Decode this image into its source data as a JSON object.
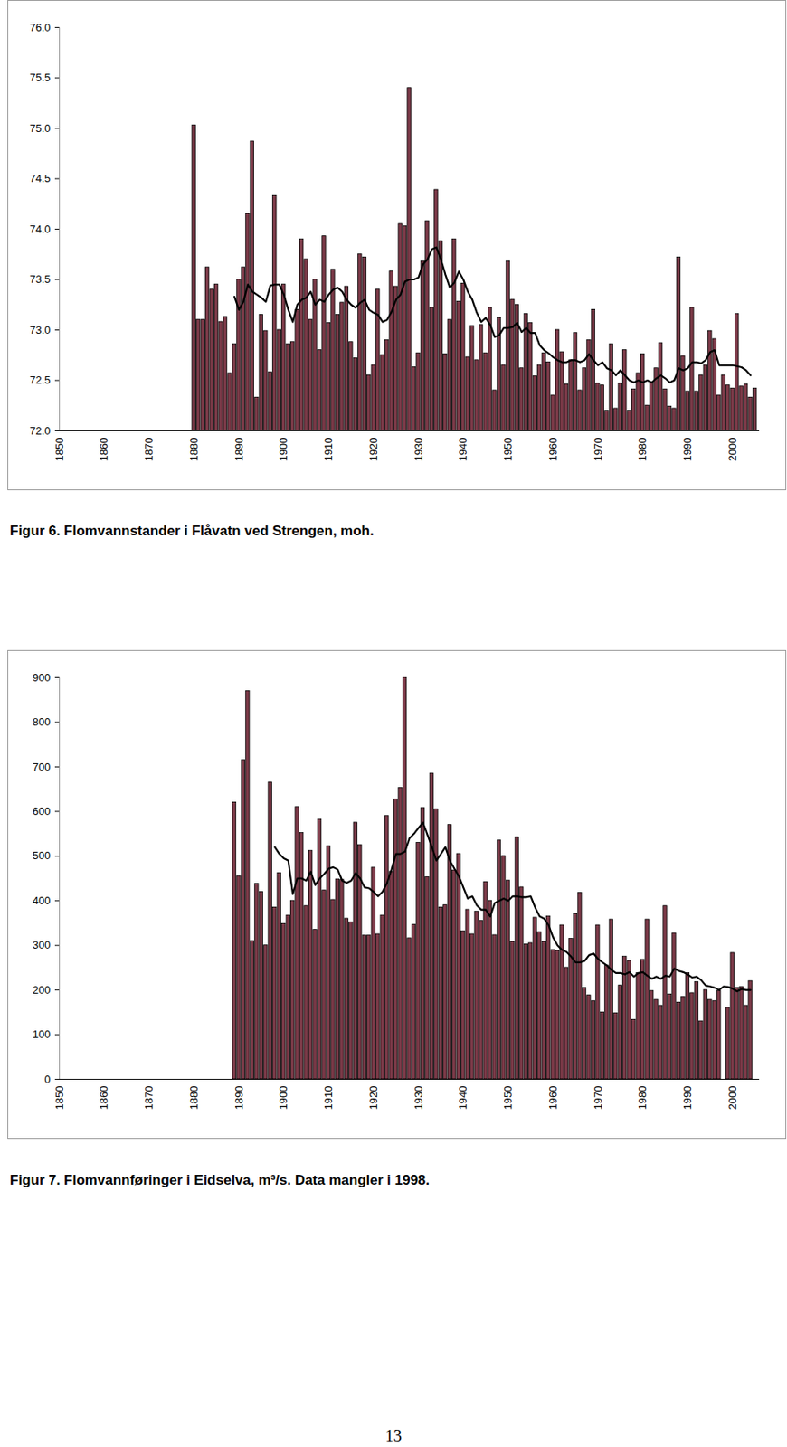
{
  "page_number": "13",
  "chart_data": [
    {
      "type": "bar",
      "title": "Figur 6. Flomvannstander i Flåvatn ved Strengen, moh.",
      "xlim": [
        1850,
        2006
      ],
      "xticks": [
        1850,
        1860,
        1870,
        1880,
        1890,
        1900,
        1910,
        1920,
        1930,
        1940,
        1950,
        1960,
        1970,
        1980,
        1990,
        2000
      ],
      "ylim": [
        72,
        76
      ],
      "yticks": [
        {
          "value": 72,
          "label": "72.0"
        },
        {
          "value": 72.5,
          "label": "72.5"
        },
        {
          "value": 73,
          "label": "73.0"
        },
        {
          "value": 73.5,
          "label": "73.5"
        },
        {
          "value": 74,
          "label": "74.0"
        },
        {
          "value": 74.5,
          "label": "74.5"
        },
        {
          "value": 75,
          "label": "75.0"
        },
        {
          "value": 75.5,
          "label": "75.5"
        },
        {
          "value": 76,
          "label": "76.0"
        }
      ],
      "grid": false,
      "series": [
        {
          "type": "bar",
          "color": "#7b3a48",
          "x": [
            1880,
            1881,
            1882,
            1883,
            1884,
            1885,
            1886,
            1887,
            1888,
            1889,
            1890,
            1891,
            1892,
            1893,
            1894,
            1895,
            1896,
            1897,
            1898,
            1899,
            1900,
            1901,
            1902,
            1903,
            1904,
            1905,
            1906,
            1907,
            1908,
            1909,
            1910,
            1911,
            1912,
            1913,
            1914,
            1915,
            1916,
            1917,
            1918,
            1919,
            1920,
            1921,
            1922,
            1923,
            1924,
            1925,
            1926,
            1927,
            1928,
            1929,
            1930,
            1931,
            1932,
            1933,
            1934,
            1935,
            1936,
            1937,
            1938,
            1939,
            1940,
            1941,
            1942,
            1943,
            1944,
            1945,
            1946,
            1947,
            1948,
            1949,
            1950,
            1951,
            1952,
            1953,
            1954,
            1955,
            1956,
            1957,
            1958,
            1959,
            1960,
            1961,
            1962,
            1963,
            1964,
            1965,
            1966,
            1967,
            1968,
            1969,
            1970,
            1971,
            1972,
            1973,
            1974,
            1975,
            1976,
            1977,
            1978,
            1979,
            1980,
            1981,
            1982,
            1983,
            1984,
            1985,
            1986,
            1987,
            1988,
            1989,
            1990,
            1991,
            1992,
            1993,
            1994,
            1995,
            1996,
            1997,
            1998,
            1999,
            2000,
            2001,
            2002,
            2003,
            2004,
            2005
          ],
          "values": [
            75.03,
            73.1,
            73.1,
            73.62,
            73.4,
            73.45,
            73.08,
            73.13,
            72.57,
            72.86,
            73.5,
            73.62,
            74.15,
            74.87,
            72.33,
            73.15,
            72.99,
            72.58,
            74.33,
            73.0,
            73.45,
            72.86,
            72.88,
            73.2,
            73.9,
            73.7,
            73.1,
            73.5,
            72.8,
            73.93,
            73.07,
            73.6,
            73.15,
            73.27,
            73.43,
            72.88,
            72.72,
            73.75,
            73.72,
            72.55,
            72.65,
            73.4,
            72.75,
            72.9,
            73.58,
            73.43,
            74.05,
            74.03,
            75.4,
            72.63,
            72.77,
            73.68,
            74.08,
            73.22,
            74.39,
            73.88,
            72.76,
            73.1,
            73.9,
            73.28,
            73.46,
            72.73,
            73.04,
            72.7,
            73.05,
            72.77,
            73.22,
            72.4,
            73.12,
            72.65,
            73.68,
            73.3,
            73.25,
            72.62,
            73.16,
            73.07,
            72.54,
            72.65,
            72.77,
            72.68,
            72.35,
            73.0,
            72.78,
            72.46,
            72.7,
            72.97,
            72.4,
            72.62,
            72.9,
            73.2,
            72.47,
            72.45,
            72.2,
            72.86,
            72.22,
            72.47,
            72.8,
            72.2,
            72.41,
            72.57,
            72.76,
            72.25,
            72.48,
            72.62,
            72.87,
            72.41,
            72.24,
            72.22,
            73.72,
            72.74,
            72.39,
            73.22,
            72.39,
            72.55,
            72.65,
            72.99,
            72.91,
            72.35,
            72.55,
            72.45,
            72.42,
            73.16,
            72.44,
            72.46,
            72.33,
            72.42
          ]
        },
        {
          "type": "line",
          "color": "#000000",
          "x": [
            1889,
            1890,
            1891,
            1892,
            1893,
            1894,
            1895,
            1896,
            1897,
            1898,
            1899,
            1900,
            1901,
            1902,
            1903,
            1904,
            1905,
            1906,
            1907,
            1908,
            1909,
            1910,
            1911,
            1912,
            1913,
            1914,
            1915,
            1916,
            1917,
            1918,
            1919,
            1920,
            1921,
            1922,
            1923,
            1924,
            1925,
            1926,
            1927,
            1928,
            1929,
            1930,
            1931,
            1932,
            1933,
            1934,
            1935,
            1936,
            1937,
            1938,
            1939,
            1940,
            1941,
            1942,
            1943,
            1944,
            1945,
            1946,
            1947,
            1948,
            1949,
            1950,
            1951,
            1952,
            1953,
            1954,
            1955,
            1956,
            1957,
            1958,
            1959,
            1960,
            1961,
            1962,
            1963,
            1964,
            1965,
            1966,
            1967,
            1968,
            1969,
            1970,
            1971,
            1972,
            1973,
            1974,
            1975,
            1976,
            1977,
            1978,
            1979,
            1980,
            1981,
            1982,
            1983,
            1984,
            1985,
            1986,
            1987,
            1988,
            1989,
            1990,
            1991,
            1992,
            1993,
            1994,
            1995,
            1996,
            1997,
            1998,
            1999,
            2000,
            2001,
            2002,
            2003,
            2004
          ],
          "values": [
            73.33,
            73.2,
            73.28,
            73.45,
            73.38,
            73.35,
            73.32,
            73.28,
            73.44,
            73.45,
            73.45,
            73.35,
            73.2,
            73.08,
            73.25,
            73.3,
            73.32,
            73.38,
            73.25,
            73.3,
            73.28,
            73.35,
            73.4,
            73.42,
            73.38,
            73.3,
            73.25,
            73.22,
            73.27,
            73.3,
            73.2,
            73.17,
            73.15,
            73.08,
            73.1,
            73.18,
            73.3,
            73.35,
            73.48,
            73.5,
            73.5,
            73.52,
            73.65,
            73.7,
            73.8,
            73.82,
            73.7,
            73.55,
            73.42,
            73.47,
            73.58,
            73.5,
            73.38,
            73.3,
            73.17,
            73.08,
            73.12,
            73.05,
            72.93,
            72.95,
            73.02,
            73.02,
            73.03,
            73.07,
            72.98,
            73.02,
            72.97,
            72.97,
            72.85,
            72.8,
            72.77,
            72.73,
            72.7,
            72.68,
            72.68,
            72.7,
            72.7,
            72.68,
            72.7,
            72.76,
            72.7,
            72.65,
            72.68,
            72.62,
            72.6,
            72.55,
            72.6,
            72.55,
            72.5,
            72.48,
            72.5,
            72.48,
            72.5,
            72.48,
            72.52,
            72.55,
            72.52,
            72.48,
            72.5,
            72.62,
            72.6,
            72.62,
            72.68,
            72.68,
            72.67,
            72.7,
            72.78,
            72.8,
            72.65,
            72.65,
            72.65,
            72.65,
            72.64,
            72.63,
            72.6,
            72.55
          ]
        }
      ]
    },
    {
      "type": "bar",
      "title": "Figur 7. Flomvannføringer i Eidselva, m³/s. Data mangler i 1998.",
      "xlim": [
        1850,
        2006
      ],
      "xticks": [
        1850,
        1860,
        1870,
        1880,
        1890,
        1900,
        1910,
        1920,
        1930,
        1940,
        1950,
        1960,
        1970,
        1980,
        1990,
        2000
      ],
      "ylim": [
        0,
        900
      ],
      "yticks": [
        0,
        100,
        200,
        300,
        400,
        500,
        600,
        700,
        800,
        900
      ],
      "grid": false,
      "series": [
        {
          "type": "bar",
          "color": "#7b3a48",
          "x": [
            1889,
            1890,
            1891,
            1892,
            1893,
            1894,
            1895,
            1896,
            1897,
            1898,
            1899,
            1900,
            1901,
            1902,
            1903,
            1904,
            1905,
            1906,
            1907,
            1908,
            1909,
            1910,
            1911,
            1912,
            1913,
            1914,
            1915,
            1916,
            1917,
            1918,
            1919,
            1920,
            1921,
            1922,
            1923,
            1924,
            1925,
            1926,
            1927,
            1928,
            1929,
            1930,
            1931,
            1932,
            1933,
            1934,
            1935,
            1936,
            1937,
            1938,
            1939,
            1940,
            1941,
            1942,
            1943,
            1944,
            1945,
            1946,
            1947,
            1948,
            1949,
            1950,
            1951,
            1952,
            1953,
            1954,
            1955,
            1956,
            1957,
            1958,
            1959,
            1960,
            1961,
            1962,
            1963,
            1964,
            1965,
            1966,
            1967,
            1968,
            1969,
            1970,
            1971,
            1972,
            1973,
            1974,
            1975,
            1976,
            1977,
            1978,
            1979,
            1980,
            1981,
            1982,
            1983,
            1984,
            1985,
            1986,
            1987,
            1988,
            1989,
            1990,
            1991,
            1992,
            1993,
            1994,
            1995,
            1996,
            1997,
            1998,
            1999,
            2000,
            2001,
            2002,
            2003,
            2004
          ],
          "values": [
            620,
            455,
            715,
            870,
            310,
            438,
            420,
            300,
            665,
            385,
            462,
            348,
            367,
            400,
            610,
            552,
            388,
            512,
            335,
            582,
            423,
            522,
            402,
            448,
            447,
            360,
            352,
            575,
            525,
            322,
            322,
            474,
            325,
            367,
            590,
            465,
            627,
            653,
            900,
            316,
            346,
            530,
            608,
            453,
            685,
            605,
            385,
            390,
            570,
            468,
            505,
            332,
            380,
            325,
            376,
            355,
            442,
            400,
            323,
            535,
            500,
            445,
            308,
            542,
            430,
            302,
            305,
            362,
            330,
            308,
            365,
            290,
            288,
            345,
            250,
            315,
            370,
            418,
            205,
            188,
            175,
            345,
            150,
            255,
            358,
            148,
            210,
            275,
            265,
            133,
            238,
            268,
            358,
            198,
            178,
            165,
            388,
            190,
            327,
            172,
            185,
            238,
            193,
            218,
            130,
            200,
            178,
            175,
            198,
            null,
            160,
            283,
            205,
            207,
            165,
            220
          ]
        },
        {
          "type": "line",
          "color": "#000000",
          "x": [
            1898,
            1899,
            1900,
            1901,
            1902,
            1903,
            1904,
            1905,
            1906,
            1907,
            1908,
            1909,
            1910,
            1911,
            1912,
            1913,
            1914,
            1915,
            1916,
            1917,
            1918,
            1919,
            1920,
            1921,
            1922,
            1923,
            1924,
            1925,
            1926,
            1927,
            1928,
            1929,
            1930,
            1931,
            1932,
            1933,
            1934,
            1935,
            1936,
            1937,
            1938,
            1939,
            1940,
            1941,
            1942,
            1943,
            1944,
            1945,
            1946,
            1947,
            1948,
            1949,
            1950,
            1951,
            1952,
            1953,
            1954,
            1955,
            1956,
            1957,
            1958,
            1959,
            1960,
            1961,
            1962,
            1963,
            1964,
            1965,
            1966,
            1967,
            1968,
            1969,
            1970,
            1971,
            1972,
            1973,
            1974,
            1975,
            1976,
            1977,
            1978,
            1979,
            1980,
            1981,
            1982,
            1983,
            1984,
            1985,
            1986,
            1987,
            1988,
            1989,
            1990,
            1991,
            1992,
            1993,
            1994,
            1995,
            1996,
            1997,
            1998,
            1999,
            2000,
            2001,
            2002,
            2003,
            2004
          ],
          "values": [
            520,
            505,
            495,
            490,
            415,
            450,
            450,
            445,
            465,
            435,
            450,
            460,
            472,
            475,
            470,
            445,
            440,
            445,
            462,
            450,
            430,
            428,
            420,
            410,
            420,
            440,
            470,
            505,
            505,
            510,
            540,
            550,
            563,
            575,
            548,
            520,
            490,
            505,
            520,
            490,
            472,
            455,
            430,
            405,
            410,
            390,
            380,
            380,
            365,
            395,
            400,
            405,
            400,
            410,
            410,
            408,
            408,
            410,
            385,
            365,
            360,
            345,
            318,
            300,
            290,
            285,
            275,
            262,
            262,
            265,
            278,
            282,
            270,
            262,
            255,
            245,
            238,
            238,
            235,
            240,
            230,
            238,
            240,
            232,
            225,
            230,
            225,
            232,
            230,
            248,
            243,
            240,
            235,
            228,
            230,
            222,
            210,
            208,
            205,
            200,
            208,
            207,
            203,
            197,
            202,
            200,
            200
          ]
        }
      ]
    }
  ]
}
